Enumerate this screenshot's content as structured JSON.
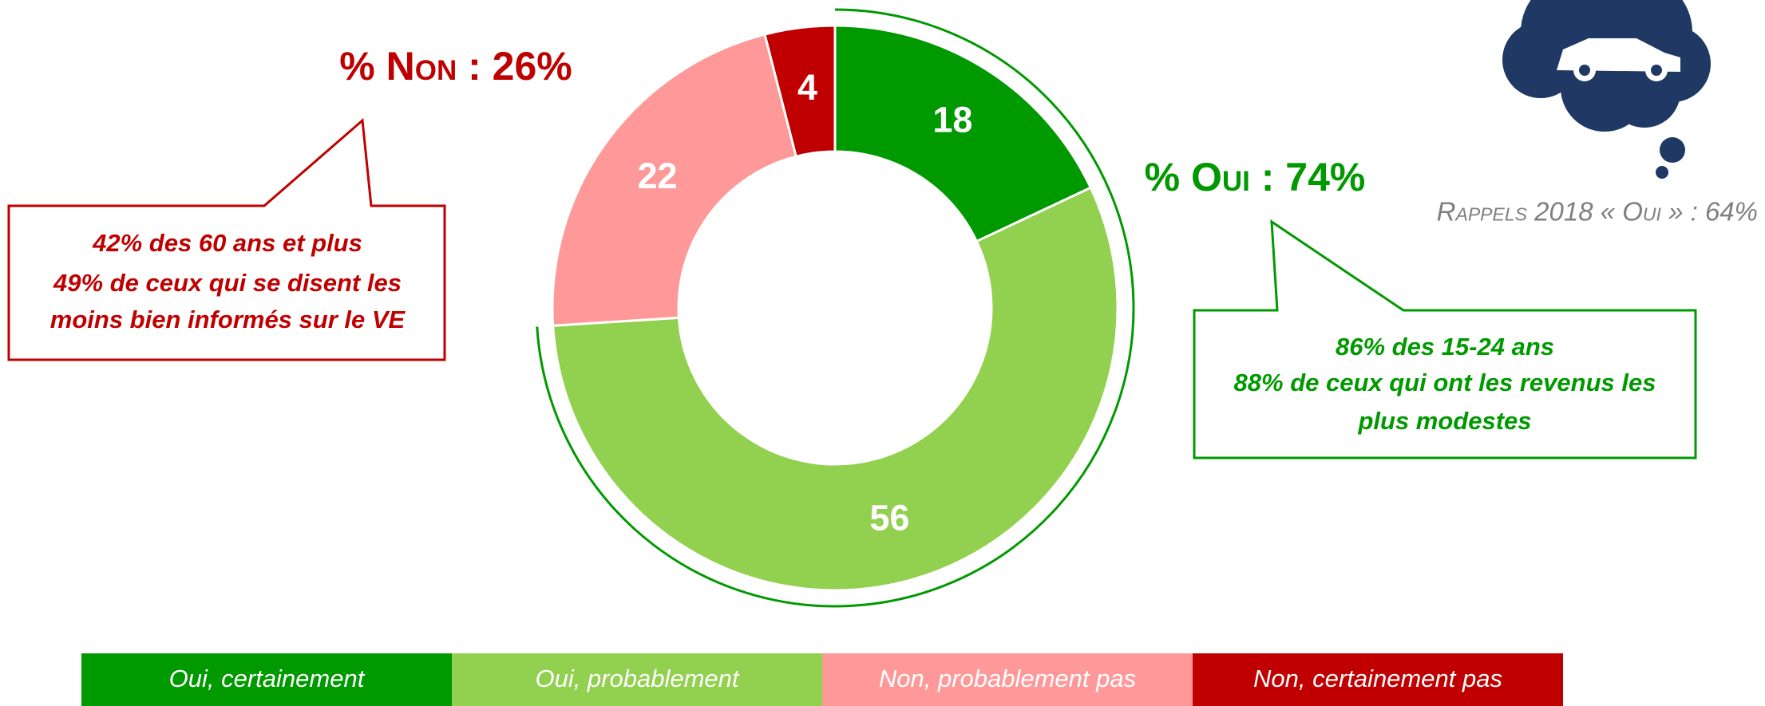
{
  "chart_data": {
    "type": "pie",
    "donut": true,
    "categories": [
      "Oui, certainement",
      "Oui, probablement",
      "Non, probablement pas",
      "Non, certainement pas"
    ],
    "values": [
      18,
      56,
      22,
      4
    ],
    "colors": [
      "#009900",
      "#92d050",
      "#ff9999",
      "#c00000"
    ],
    "annotations": {
      "non_total": "% Non : 26%",
      "oui_total": "% Oui : 74%",
      "recall": "Rappels 2018 « Oui » : 64%",
      "non_callout": [
        "42% des 60 ans et plus",
        "49% de ceux qui se disent les",
        "moins bien informés sur le VE"
      ],
      "oui_callout": [
        "86% des 15-24 ans",
        "88% de ceux qui ont les revenus les",
        "plus modestes"
      ]
    }
  }
}
